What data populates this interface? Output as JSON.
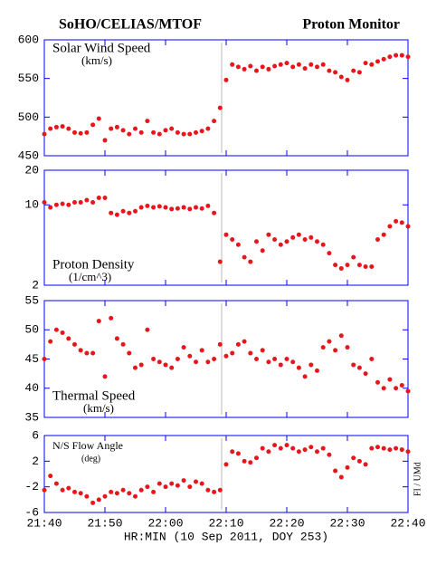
{
  "title": "SoHO/CELIAS/MTOF",
  "subtitle": "Proton Monitor",
  "credit": "FI / UMd",
  "chart_data": [
    {
      "type": "scatter",
      "ylabel": "Solar Wind Speed",
      "unit": "(km/s)",
      "color": "#e8161b",
      "xlim": [
        "21:40",
        "22:40"
      ],
      "xticks": [
        "21:40",
        "21:50",
        "22:00",
        "22:10",
        "22:20",
        "22:30",
        "22:40"
      ],
      "ylim": [
        450,
        600
      ],
      "yticks": [
        450,
        500,
        550,
        600
      ],
      "x": [
        "21:40",
        "21:41",
        "21:42",
        "21:43",
        "21:44",
        "21:45",
        "21:46",
        "21:47",
        "21:48",
        "21:49",
        "21:50",
        "21:51",
        "21:52",
        "21:53",
        "21:54",
        "21:55",
        "21:56",
        "21:57",
        "21:58",
        "21:59",
        "22:00",
        "22:01",
        "22:02",
        "22:03",
        "22:04",
        "22:05",
        "22:06",
        "22:07",
        "22:08",
        "22:09",
        "22:10",
        "22:11",
        "22:12",
        "22:13",
        "22:14",
        "22:15",
        "22:16",
        "22:17",
        "22:18",
        "22:19",
        "22:20",
        "22:21",
        "22:22",
        "22:23",
        "22:24",
        "22:25",
        "22:26",
        "22:27",
        "22:28",
        "22:29",
        "22:30",
        "22:31",
        "22:32",
        "22:33",
        "22:34",
        "22:35",
        "22:36",
        "22:37",
        "22:38",
        "22:39",
        "22:40"
      ],
      "values": [
        478,
        485,
        487,
        488,
        485,
        480,
        479,
        480,
        490,
        498,
        470,
        485,
        487,
        483,
        478,
        485,
        480,
        495,
        480,
        478,
        483,
        485,
        480,
        478,
        478,
        480,
        482,
        485,
        495,
        512,
        548,
        568,
        565,
        562,
        566,
        560,
        565,
        562,
        566,
        568,
        570,
        565,
        568,
        563,
        568,
        565,
        568,
        560,
        558,
        552,
        548,
        560,
        558,
        570,
        568,
        572,
        575,
        578,
        580,
        580,
        578
      ]
    },
    {
      "type": "scatter",
      "ylabel": "Proton Density",
      "unit": "(1/cm^3)",
      "color": "#e8161b",
      "log": true,
      "xlim": [
        "21:40",
        "22:40"
      ],
      "xticks": [
        "21:40",
        "21:50",
        "22:00",
        "22:10",
        "22:20",
        "22:30",
        "22:40"
      ],
      "ylim": [
        2,
        20
      ],
      "yticks": [
        2,
        10,
        20
      ],
      "x": [
        "21:40",
        "21:41",
        "21:42",
        "21:43",
        "21:44",
        "21:45",
        "21:46",
        "21:47",
        "21:48",
        "21:49",
        "21:50",
        "21:51",
        "21:52",
        "21:53",
        "21:54",
        "21:55",
        "21:56",
        "21:57",
        "21:58",
        "21:59",
        "22:00",
        "22:01",
        "22:02",
        "22:03",
        "22:04",
        "22:05",
        "22:06",
        "22:07",
        "22:08",
        "22:09",
        "22:10",
        "22:11",
        "22:12",
        "22:13",
        "22:14",
        "22:15",
        "22:16",
        "22:17",
        "22:18",
        "22:19",
        "22:20",
        "22:21",
        "22:22",
        "22:23",
        "22:24",
        "22:25",
        "22:26",
        "22:27",
        "22:28",
        "22:29",
        "22:30",
        "22:31",
        "22:32",
        "22:33",
        "22:34",
        "22:35",
        "22:36",
        "22:37",
        "22:38",
        "22:39",
        "22:40"
      ],
      "values": [
        10.5,
        9.5,
        10,
        10.2,
        10,
        10.5,
        10.5,
        11,
        10.5,
        11.5,
        11.5,
        8.5,
        8.2,
        8.8,
        8.5,
        8.8,
        9.5,
        9.8,
        9.5,
        9.7,
        9.5,
        9.2,
        9.3,
        9.5,
        9.2,
        9.5,
        9.3,
        9.8,
        8.5,
        3.2,
        5.5,
        5,
        4.5,
        3.5,
        3.2,
        4.8,
        4,
        5.5,
        5,
        4.5,
        4.8,
        5.2,
        5.5,
        5,
        5.2,
        4.8,
        4.5,
        3.8,
        3,
        2.8,
        3,
        3.5,
        3,
        2.9,
        2.9,
        5,
        5.5,
        6.5,
        7.2,
        7,
        6.5
      ]
    },
    {
      "type": "scatter",
      "ylabel": "Thermal Speed",
      "unit": "(km/s)",
      "color": "#e8161b",
      "xlim": [
        "21:40",
        "22:40"
      ],
      "xticks": [
        "21:40",
        "21:50",
        "22:00",
        "22:10",
        "22:20",
        "22:30",
        "22:40"
      ],
      "ylim": [
        35,
        55
      ],
      "yticks": [
        35,
        40,
        45,
        50,
        55
      ],
      "x": [
        "21:40",
        "21:41",
        "21:42",
        "21:43",
        "21:44",
        "21:45",
        "21:46",
        "21:47",
        "21:48",
        "21:49",
        "21:50",
        "21:51",
        "21:52",
        "21:53",
        "21:54",
        "21:55",
        "21:56",
        "21:57",
        "21:58",
        "21:59",
        "22:00",
        "22:01",
        "22:02",
        "22:03",
        "22:04",
        "22:05",
        "22:06",
        "22:07",
        "22:08",
        "22:09",
        "22:10",
        "22:11",
        "22:12",
        "22:13",
        "22:14",
        "22:15",
        "22:16",
        "22:17",
        "22:18",
        "22:19",
        "22:20",
        "22:21",
        "22:22",
        "22:23",
        "22:24",
        "22:25",
        "22:26",
        "22:27",
        "22:28",
        "22:29",
        "22:30",
        "22:31",
        "22:32",
        "22:33",
        "22:34",
        "22:35",
        "22:36",
        "22:37",
        "22:38",
        "22:39",
        "22:40"
      ],
      "values": [
        45,
        48,
        50,
        49.5,
        48.5,
        47.5,
        46.5,
        46,
        46,
        51.5,
        42,
        52,
        48.5,
        47.5,
        46,
        43.5,
        44,
        50,
        45,
        44.5,
        44,
        43.5,
        45,
        47,
        45.5,
        44.5,
        46.5,
        44.5,
        45,
        47.5,
        45.5,
        46,
        47.5,
        48,
        46,
        45,
        46.5,
        44.5,
        45,
        44,
        45,
        44.5,
        43.5,
        42,
        44,
        43,
        47,
        48,
        46.5,
        49,
        47,
        44,
        43.5,
        42.5,
        45,
        41,
        40,
        41.5,
        40,
        40.5,
        39.5
      ]
    },
    {
      "type": "scatter",
      "ylabel": "N/S Flow Angle",
      "unit": "(deg)",
      "color": "#e8161b",
      "xlabel": "HR:MIN (10 Sep 2011, DOY 253)",
      "xlim": [
        "21:40",
        "22:40"
      ],
      "xticks": [
        "21:40",
        "21:50",
        "22:00",
        "22:10",
        "22:20",
        "22:30",
        "22:40"
      ],
      "ylim": [
        -6,
        6
      ],
      "yticks": [
        -6,
        -2,
        2,
        6
      ],
      "x": [
        "21:40",
        "21:41",
        "21:42",
        "21:43",
        "21:44",
        "21:45",
        "21:46",
        "21:47",
        "21:48",
        "21:49",
        "21:50",
        "21:51",
        "21:52",
        "21:53",
        "21:54",
        "21:55",
        "21:56",
        "21:57",
        "21:58",
        "21:59",
        "22:00",
        "22:01",
        "22:02",
        "22:03",
        "22:04",
        "22:05",
        "22:06",
        "22:07",
        "22:08",
        "22:09",
        "22:10",
        "22:11",
        "22:12",
        "22:13",
        "22:14",
        "22:15",
        "22:16",
        "22:17",
        "22:18",
        "22:19",
        "22:20",
        "22:21",
        "22:22",
        "22:23",
        "22:24",
        "22:25",
        "22:26",
        "22:27",
        "22:28",
        "22:29",
        "22:30",
        "22:31",
        "22:32",
        "22:33",
        "22:34",
        "22:35",
        "22:36",
        "22:37",
        "22:38",
        "22:39",
        "22:40"
      ],
      "values": [
        -2.5,
        -0.3,
        -1.5,
        -2.5,
        -2.2,
        -2.8,
        -3,
        -3.5,
        -4.5,
        -4,
        -3.5,
        -2.8,
        -3,
        -2.5,
        -3,
        -3.5,
        -2.5,
        -2,
        -2.8,
        -1.5,
        -2,
        -1.5,
        -1.8,
        -1,
        -2,
        -1.2,
        -1.5,
        -2.5,
        -2.8,
        -2.5,
        1.5,
        3.5,
        3.2,
        2,
        1.8,
        2.5,
        4,
        3.5,
        4.5,
        4,
        4.5,
        4,
        3.5,
        3.8,
        4.2,
        3.5,
        4,
        3,
        0.5,
        -0.5,
        1,
        2.5,
        2,
        1.5,
        4,
        4.2,
        4,
        3.8,
        4,
        3.8,
        3.5
      ]
    }
  ]
}
